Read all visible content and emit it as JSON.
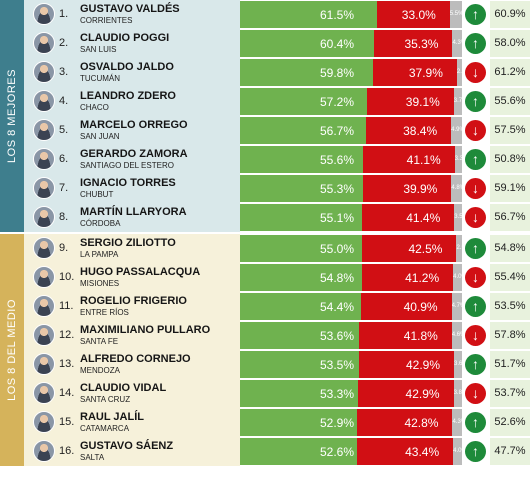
{
  "colors": {
    "positive": "#6fb24f",
    "negative": "#d10f14",
    "no_response": "#bcbcbc",
    "trend_up": "#1e8a3a",
    "trend_down": "#d10f14",
    "section_top_label": "#3e7e8d",
    "section_top_bg": "#d9e8ea",
    "section_mid_label": "#d5b35b",
    "section_mid_bg": "#f6f1da",
    "previous_bg": "#e8f2dd"
  },
  "sections": [
    {
      "label": "LOS 8 MEJORES",
      "rows": [
        {
          "rank": "1.",
          "name": "GUSTAVO VALDÉS",
          "province": "CORRIENTES",
          "positive": "61.5%",
          "negative": "33.0%",
          "no_response": "5.5%",
          "trend": "up",
          "trend_icon": "arrow-up-icon",
          "previous": "60.9%"
        },
        {
          "rank": "2.",
          "name": "CLAUDIO POGGI",
          "province": "SAN LUIS",
          "positive": "60.4%",
          "negative": "35.3%",
          "no_response": "4.3%",
          "trend": "up",
          "trend_icon": "arrow-up-icon",
          "previous": "58.0%"
        },
        {
          "rank": "3.",
          "name": "OSVALDO JALDO",
          "province": "TUCUMÁN",
          "positive": "59.8%",
          "negative": "37.9%",
          "no_response": "2.3%",
          "trend": "down",
          "trend_icon": "arrow-down-icon",
          "previous": "61.2%"
        },
        {
          "rank": "4.",
          "name": "LEANDRO ZDERO",
          "province": "CHACO",
          "positive": "57.2%",
          "negative": "39.1%",
          "no_response": "3.7%",
          "trend": "up",
          "trend_icon": "arrow-up-icon",
          "previous": "55.6%"
        },
        {
          "rank": "5.",
          "name": "MARCELO ORREGO",
          "province": "SAN JUAN",
          "positive": "56.7%",
          "negative": "38.4%",
          "no_response": "4.9%",
          "trend": "down",
          "trend_icon": "arrow-down-icon",
          "previous": "57.5%"
        },
        {
          "rank": "6.",
          "name": "GERARDO ZAMORA",
          "province": "SANTIAGO DEL ESTERO",
          "positive": "55.6%",
          "negative": "41.1%",
          "no_response": "3.3%",
          "trend": "up",
          "trend_icon": "arrow-up-icon",
          "previous": "50.8%"
        },
        {
          "rank": "7.",
          "name": "IGNACIO TORRES",
          "province": "CHUBUT",
          "positive": "55.3%",
          "negative": "39.9%",
          "no_response": "4.8%",
          "trend": "down",
          "trend_icon": "arrow-down-icon",
          "previous": "59.1%"
        },
        {
          "rank": "8.",
          "name": "MARTÍN LLARYORA",
          "province": "CÓRDOBA",
          "positive": "55.1%",
          "negative": "41.4%",
          "no_response": "3.5%",
          "trend": "down",
          "trend_icon": "arrow-down-icon",
          "previous": "56.7%"
        }
      ]
    },
    {
      "label": "LOS 8 DEL MEDIO",
      "rows": [
        {
          "rank": "9.",
          "name": "SERGIO ZILIOTTO",
          "province": "LA PAMPA",
          "positive": "55.0%",
          "negative": "42.5%",
          "no_response": "2.5%",
          "trend": "up",
          "trend_icon": "arrow-up-icon",
          "previous": "54.8%"
        },
        {
          "rank": "10.",
          "name": "HUGO PASSALACQUA",
          "province": "MISIONES",
          "positive": "54.8%",
          "negative": "41.2%",
          "no_response": "4.0%",
          "trend": "down",
          "trend_icon": "arrow-down-icon",
          "previous": "55.4%"
        },
        {
          "rank": "11.",
          "name": "ROGELIO FRIGERIO",
          "province": "ENTRE RÍOS",
          "positive": "54.4%",
          "negative": "40.9%",
          "no_response": "4.7%",
          "trend": "up",
          "trend_icon": "arrow-up-icon",
          "previous": "53.5%"
        },
        {
          "rank": "12.",
          "name": "MAXIMILIANO PULLARO",
          "province": "SANTA FE",
          "positive": "53.6%",
          "negative": "41.8%",
          "no_response": "4.6%",
          "trend": "down",
          "trend_icon": "arrow-down-icon",
          "previous": "57.8%"
        },
        {
          "rank": "13.",
          "name": "ALFREDO CORNEJO",
          "province": "MENDOZA",
          "positive": "53.5%",
          "negative": "42.9%",
          "no_response": "3.6%",
          "trend": "up",
          "trend_icon": "arrow-up-icon",
          "previous": "51.7%"
        },
        {
          "rank": "14.",
          "name": "CLAUDIO VIDAL",
          "province": "SANTA CRUZ",
          "positive": "53.3%",
          "negative": "42.9%",
          "no_response": "3.8%",
          "trend": "down",
          "trend_icon": "arrow-down-icon",
          "previous": "53.7%"
        },
        {
          "rank": "15.",
          "name": "RAUL JALÍL",
          "province": "CATAMARCA",
          "positive": "52.9%",
          "negative": "42.8%",
          "no_response": "4.3%",
          "trend": "up",
          "trend_icon": "arrow-up-icon",
          "previous": "52.6%"
        },
        {
          "rank": "16.",
          "name": "GUSTAVO SÁENZ",
          "province": "SALTA",
          "positive": "52.6%",
          "negative": "43.4%",
          "no_response": "4.0%",
          "trend": "up",
          "trend_icon": "arrow-up-icon",
          "previous": "47.7%"
        }
      ]
    }
  ]
}
